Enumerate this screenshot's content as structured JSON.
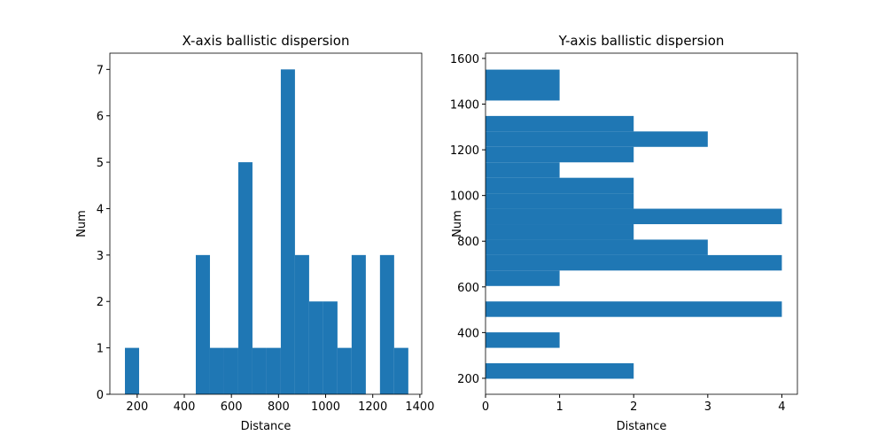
{
  "chart_data": [
    {
      "type": "histogram",
      "orientation": "vertical",
      "title": "X-axis ballistic dispersion",
      "x_label": "Distance",
      "y_label": "Num",
      "color": "#1f77b4",
      "bins": [
        148.0,
        208.2,
        268.3,
        328.5,
        388.6,
        448.8,
        508.9,
        569.1,
        629.2,
        689.4,
        749.5,
        809.7,
        869.8,
        930.0,
        990.1,
        1050.3,
        1110.4,
        1170.6,
        1230.7,
        1290.9,
        1351.0
      ],
      "counts": [
        1,
        0,
        0,
        0,
        0,
        3,
        1,
        1,
        5,
        1,
        1,
        7,
        3,
        2,
        2,
        1,
        3,
        0,
        3,
        1
      ],
      "xlim": [
        84,
        1408
      ],
      "xticks": [
        200,
        400,
        600,
        800,
        1000,
        1200,
        1400
      ],
      "ylim": [
        0,
        7.35
      ],
      "yticks": [
        0,
        1,
        2,
        3,
        4,
        5,
        6,
        7
      ]
    },
    {
      "type": "histogram",
      "orientation": "horizontal",
      "title": "Y-axis ballistic dispersion",
      "x_label": "Distance",
      "y_label": "Num",
      "color": "#1f77b4",
      "bins": [
        198.0,
        265.7,
        333.3,
        401.0,
        468.6,
        536.3,
        603.9,
        671.6,
        739.2,
        806.9,
        874.5,
        942.2,
        1009.8,
        1077.5,
        1145.1,
        1212.8,
        1280.4,
        1348.1,
        1415.7,
        1483.4,
        1551.0
      ],
      "counts": [
        2,
        0,
        1,
        0,
        4,
        0,
        1,
        4,
        3,
        2,
        4,
        2,
        2,
        1,
        2,
        3,
        2,
        0,
        1,
        1
      ],
      "xlim": [
        0,
        4.21
      ],
      "xticks": [
        0,
        1,
        2,
        3,
        4
      ],
      "ylim": [
        130,
        1623
      ],
      "yticks": [
        200,
        400,
        600,
        800,
        1000,
        1200,
        1400,
        1600
      ]
    }
  ]
}
